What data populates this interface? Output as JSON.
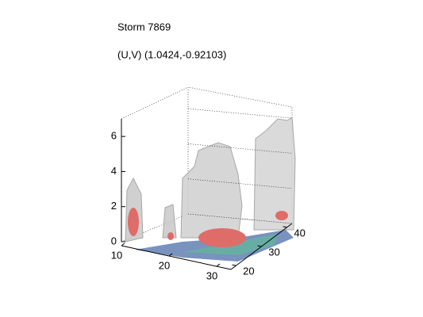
{
  "chart_data": {
    "type": "isosurface3d",
    "title": "Storm 7869",
    "subtitle": "(U,V) (1.0424,-0.92103)",
    "xlim": [
      10,
      33
    ],
    "xticks": [
      10,
      20,
      30
    ],
    "ylim": [
      18,
      42
    ],
    "yticks": [
      20,
      30,
      40
    ],
    "zlim": [
      0,
      7
    ],
    "zticks": [
      0,
      2,
      4,
      6
    ],
    "grid": true
  }
}
